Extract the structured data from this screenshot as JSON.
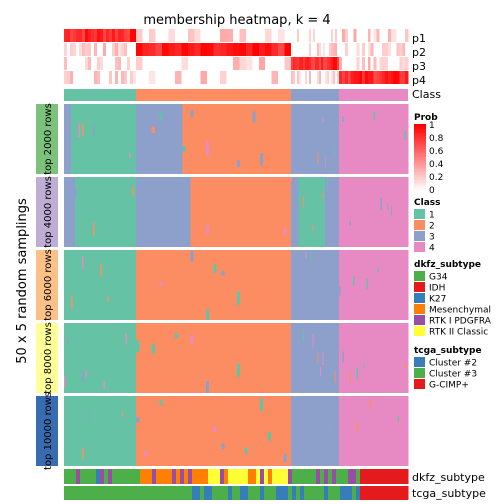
{
  "chart_data": {
    "type": "heatmap",
    "title": "membership heatmap, k = 4",
    "ylabel": "50 x 5 random samplings",
    "row_annotations": [
      "p1",
      "p2",
      "p3",
      "p4",
      "Class"
    ],
    "bottom_annotations": [
      "dkfz_subtype",
      "tcga_subtype"
    ],
    "row_groups": [
      {
        "label": "top 2000 rows",
        "color": "#7CC27C"
      },
      {
        "label": "top 4000 rows",
        "color": "#BEAED4"
      },
      {
        "label": "top 6000 rows",
        "color": "#FDC086"
      },
      {
        "label": "top 8000 rows",
        "color": "#FFFF99"
      },
      {
        "label": "top 10000 rows",
        "color": "#386CB0"
      }
    ],
    "class_colors": {
      "1": "#66C2A5",
      "2": "#FC8D62",
      "3": "#8DA0CB",
      "4": "#E78AC3"
    },
    "column_classes": [
      {
        "class": "1",
        "fraction": 0.21
      },
      {
        "class": "2",
        "fraction": 0.45
      },
      {
        "class": "3",
        "fraction": 0.14
      },
      {
        "class": "4",
        "fraction": 0.2
      }
    ],
    "legends": {
      "prob": {
        "title": "Prob",
        "ticks": [
          "1",
          "0.8",
          "0.6",
          "0.4",
          "0.2",
          "0"
        ],
        "color_high": "#FF0000",
        "color_low": "#FFFFFF"
      },
      "class": {
        "title": "Class",
        "items": [
          {
            "label": "1",
            "color": "#66C2A5"
          },
          {
            "label": "2",
            "color": "#FC8D62"
          },
          {
            "label": "3",
            "color": "#8DA0CB"
          },
          {
            "label": "4",
            "color": "#E78AC3"
          }
        ]
      },
      "dkfz_subtype": {
        "title": "dkfz_subtype",
        "items": [
          {
            "label": "G34",
            "color": "#4DAF4A"
          },
          {
            "label": "IDH",
            "color": "#E41A1C"
          },
          {
            "label": "K27",
            "color": "#377EB8"
          },
          {
            "label": "Mesenchymal",
            "color": "#FF7F00"
          },
          {
            "label": "RTK I PDGFRA",
            "color": "#984EA3"
          },
          {
            "label": "RTK II Classic",
            "color": "#FFFF33"
          }
        ]
      },
      "tcga_subtype": {
        "title": "tcga_subtype",
        "items": [
          {
            "label": "Cluster #2",
            "color": "#377EB8"
          },
          {
            "label": "Cluster #3",
            "color": "#4DAF4A"
          },
          {
            "label": "G-CIMP+",
            "color": "#E41A1C"
          }
        ]
      }
    }
  }
}
